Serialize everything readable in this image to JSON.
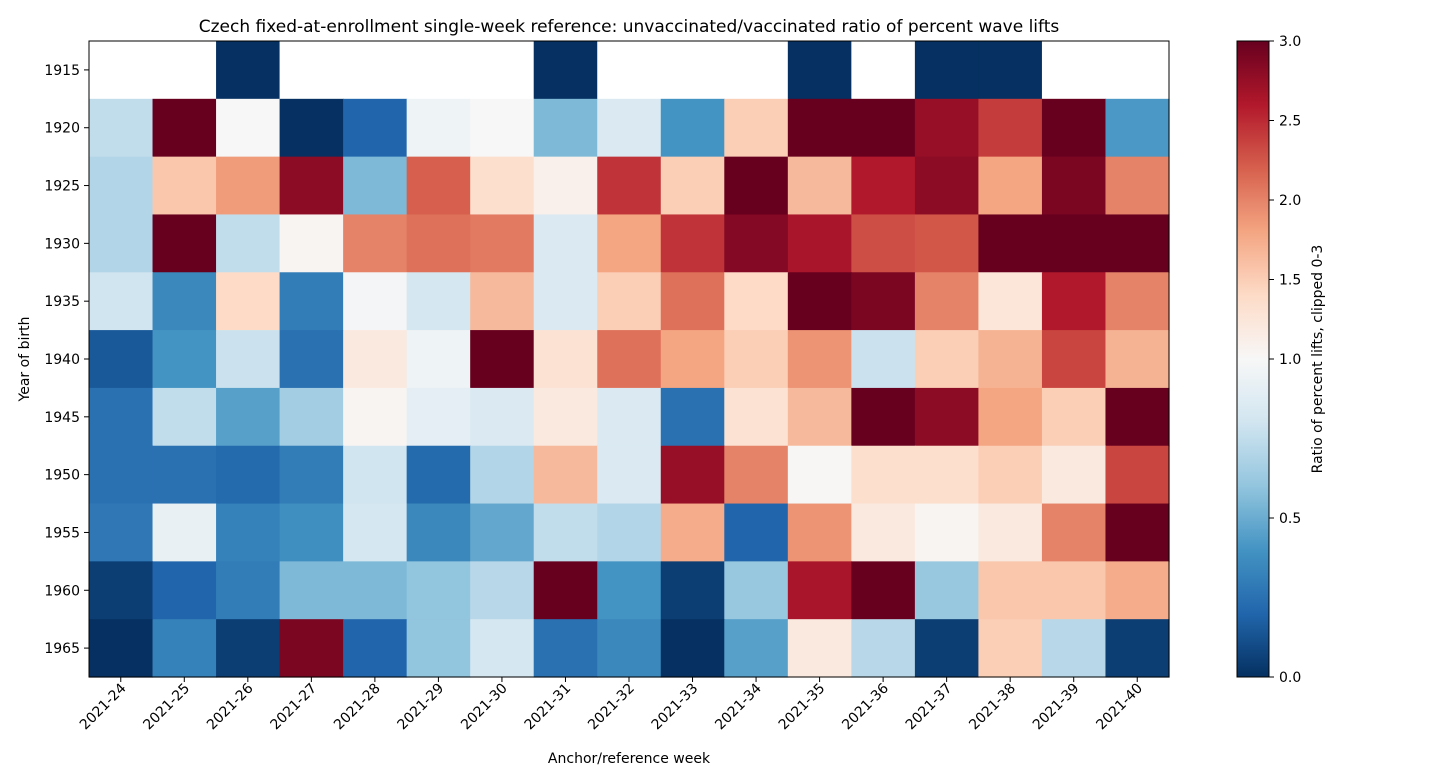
{
  "chart_data": {
    "type": "heatmap",
    "title": "Czech fixed-at-enrollment single-week reference: unvaccinated/vaccinated ratio of percent wave lifts",
    "xlabel": "Anchor/reference week",
    "ylabel": "Year of birth",
    "x_categories": [
      "2021-24",
      "2021-25",
      "2021-26",
      "2021-27",
      "2021-28",
      "2021-29",
      "2021-30",
      "2021-31",
      "2021-32",
      "2021-33",
      "2021-34",
      "2021-35",
      "2021-36",
      "2021-37",
      "2021-38",
      "2021-39",
      "2021-40"
    ],
    "y_categories": [
      "1915",
      "1920",
      "1925",
      "1930",
      "1935",
      "1940",
      "1945",
      "1950",
      "1955",
      "1960",
      "1965"
    ],
    "values": [
      [
        null,
        null,
        0.0,
        null,
        null,
        null,
        null,
        0.0,
        null,
        null,
        null,
        0.0,
        null,
        0.0,
        0.0,
        null,
        null
      ],
      [
        0.75,
        3.0,
        1.0,
        0.0,
        0.2,
        0.95,
        1.0,
        0.55,
        0.85,
        0.4,
        1.5,
        3.0,
        3.0,
        2.75,
        2.4,
        3.0,
        0.42
      ],
      [
        0.7,
        1.55,
        1.85,
        2.8,
        0.55,
        2.2,
        1.35,
        1.1,
        2.45,
        1.5,
        3.0,
        1.65,
        2.6,
        2.8,
        1.8,
        2.9,
        2.0
      ],
      [
        0.7,
        3.0,
        0.75,
        1.05,
        2.0,
        2.1,
        2.05,
        0.85,
        1.8,
        2.45,
        2.85,
        2.65,
        2.3,
        2.25,
        3.0,
        3.0,
        3.0
      ],
      [
        0.8,
        0.35,
        1.4,
        0.3,
        0.98,
        0.82,
        1.65,
        0.85,
        1.5,
        2.1,
        1.4,
        3.0,
        2.9,
        2.0,
        1.25,
        2.6,
        2.0
      ],
      [
        0.15,
        0.4,
        0.78,
        0.25,
        1.2,
        0.95,
        3.0,
        1.3,
        2.1,
        1.8,
        1.5,
        1.9,
        0.78,
        1.5,
        1.7,
        2.35,
        1.7
      ],
      [
        0.25,
        0.75,
        0.45,
        0.65,
        1.05,
        0.9,
        0.85,
        1.2,
        0.85,
        0.25,
        1.3,
        1.65,
        3.0,
        2.8,
        1.8,
        1.5,
        3.0
      ],
      [
        0.25,
        0.25,
        0.22,
        0.3,
        0.8,
        0.22,
        0.7,
        1.65,
        0.85,
        2.75,
        2.0,
        1.02,
        1.35,
        1.35,
        1.5,
        1.2,
        2.35
      ],
      [
        0.28,
        0.92,
        0.32,
        0.38,
        0.82,
        0.35,
        0.48,
        0.75,
        0.7,
        1.75,
        0.2,
        1.9,
        1.2,
        1.05,
        1.2,
        2.0,
        3.0
      ],
      [
        0.05,
        0.2,
        0.3,
        0.55,
        0.55,
        0.6,
        0.72,
        3.0,
        0.4,
        0.05,
        0.62,
        2.65,
        3.0,
        0.62,
        1.55,
        1.55,
        1.75
      ],
      [
        0.0,
        0.32,
        0.05,
        2.9,
        0.2,
        0.6,
        0.82,
        0.25,
        0.35,
        0.0,
        0.45,
        1.2,
        0.72,
        0.05,
        1.5,
        0.72,
        0.05
      ]
    ],
    "colorbar": {
      "label": "Ratio of percent lifts, clipped 0-3",
      "min": 0.0,
      "max": 3.0,
      "center": 1.0,
      "ticks": [
        0.0,
        0.5,
        1.0,
        1.5,
        2.0,
        2.5,
        3.0
      ],
      "tick_labels": [
        "0.0",
        "0.5",
        "1.0",
        "1.5",
        "2.0",
        "2.5",
        "3.0"
      ],
      "colormap": "RdBu_r"
    },
    "grid": false
  }
}
